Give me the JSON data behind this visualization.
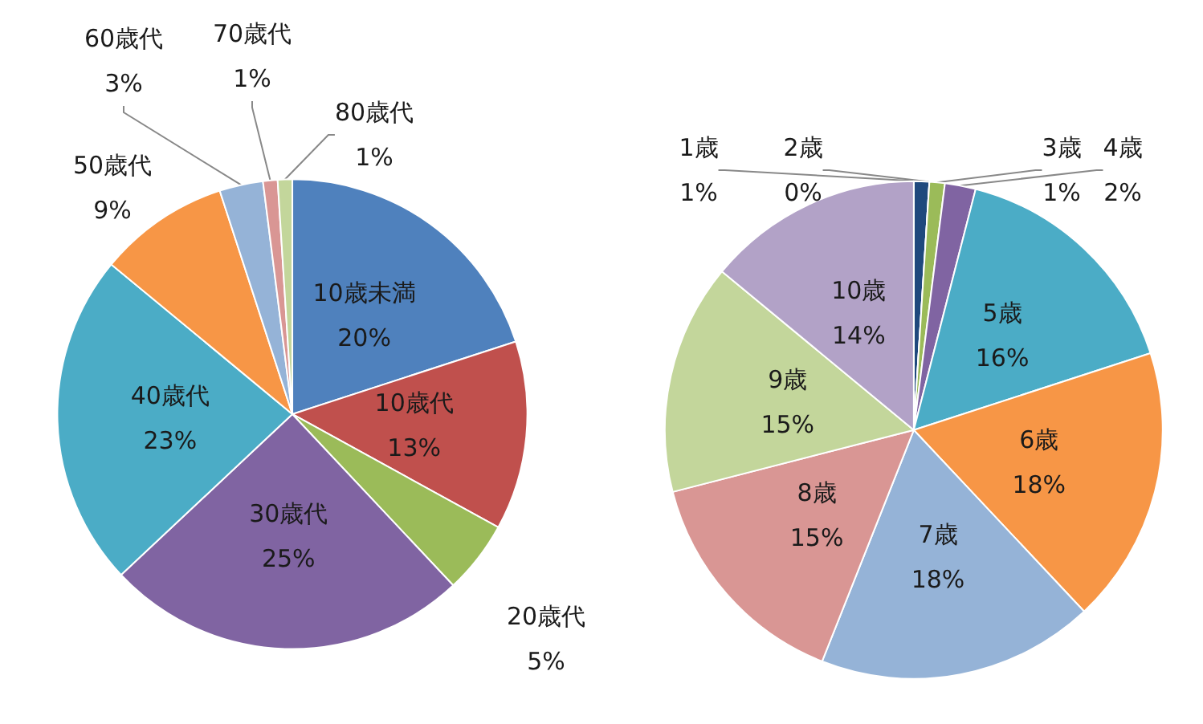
{
  "chart_data": [
    {
      "type": "pie",
      "categories": [
        "10歳未満",
        "10歳代",
        "20歳代",
        "30歳代",
        "40歳代",
        "50歳代",
        "60歳代",
        "70歳代",
        "80歳代"
      ],
      "values": [
        20,
        13,
        5,
        25,
        23,
        9,
        3,
        1,
        1
      ],
      "value_labels": [
        "20%",
        "13%",
        "5%",
        "25%",
        "23%",
        "9%",
        "3%",
        "1%",
        "1%"
      ],
      "colors": [
        "#4f81bd",
        "#c0504d",
        "#9bbb59",
        "#8064a2",
        "#4bacc6",
        "#f79646",
        "#95b3d7",
        "#d99694",
        "#c3d69b"
      ],
      "legend": false
    },
    {
      "type": "pie",
      "categories": [
        "1歳",
        "2歳",
        "3歳",
        "4歳",
        "5歳",
        "6歳",
        "7歳",
        "8歳",
        "9歳",
        "10歳"
      ],
      "values": [
        1,
        0,
        1,
        2,
        16,
        18,
        18,
        15,
        15,
        14
      ],
      "value_labels": [
        "1%",
        "0%",
        "1%",
        "2%",
        "16%",
        "18%",
        "18%",
        "15%",
        "15%",
        "14%"
      ],
      "colors": [
        "#1f497d",
        "#c0504d",
        "#9bbb59",
        "#8064a2",
        "#4bacc6",
        "#f79646",
        "#95b3d7",
        "#d99694",
        "#c3d69b",
        "#b2a2c7"
      ],
      "legend": false
    }
  ]
}
